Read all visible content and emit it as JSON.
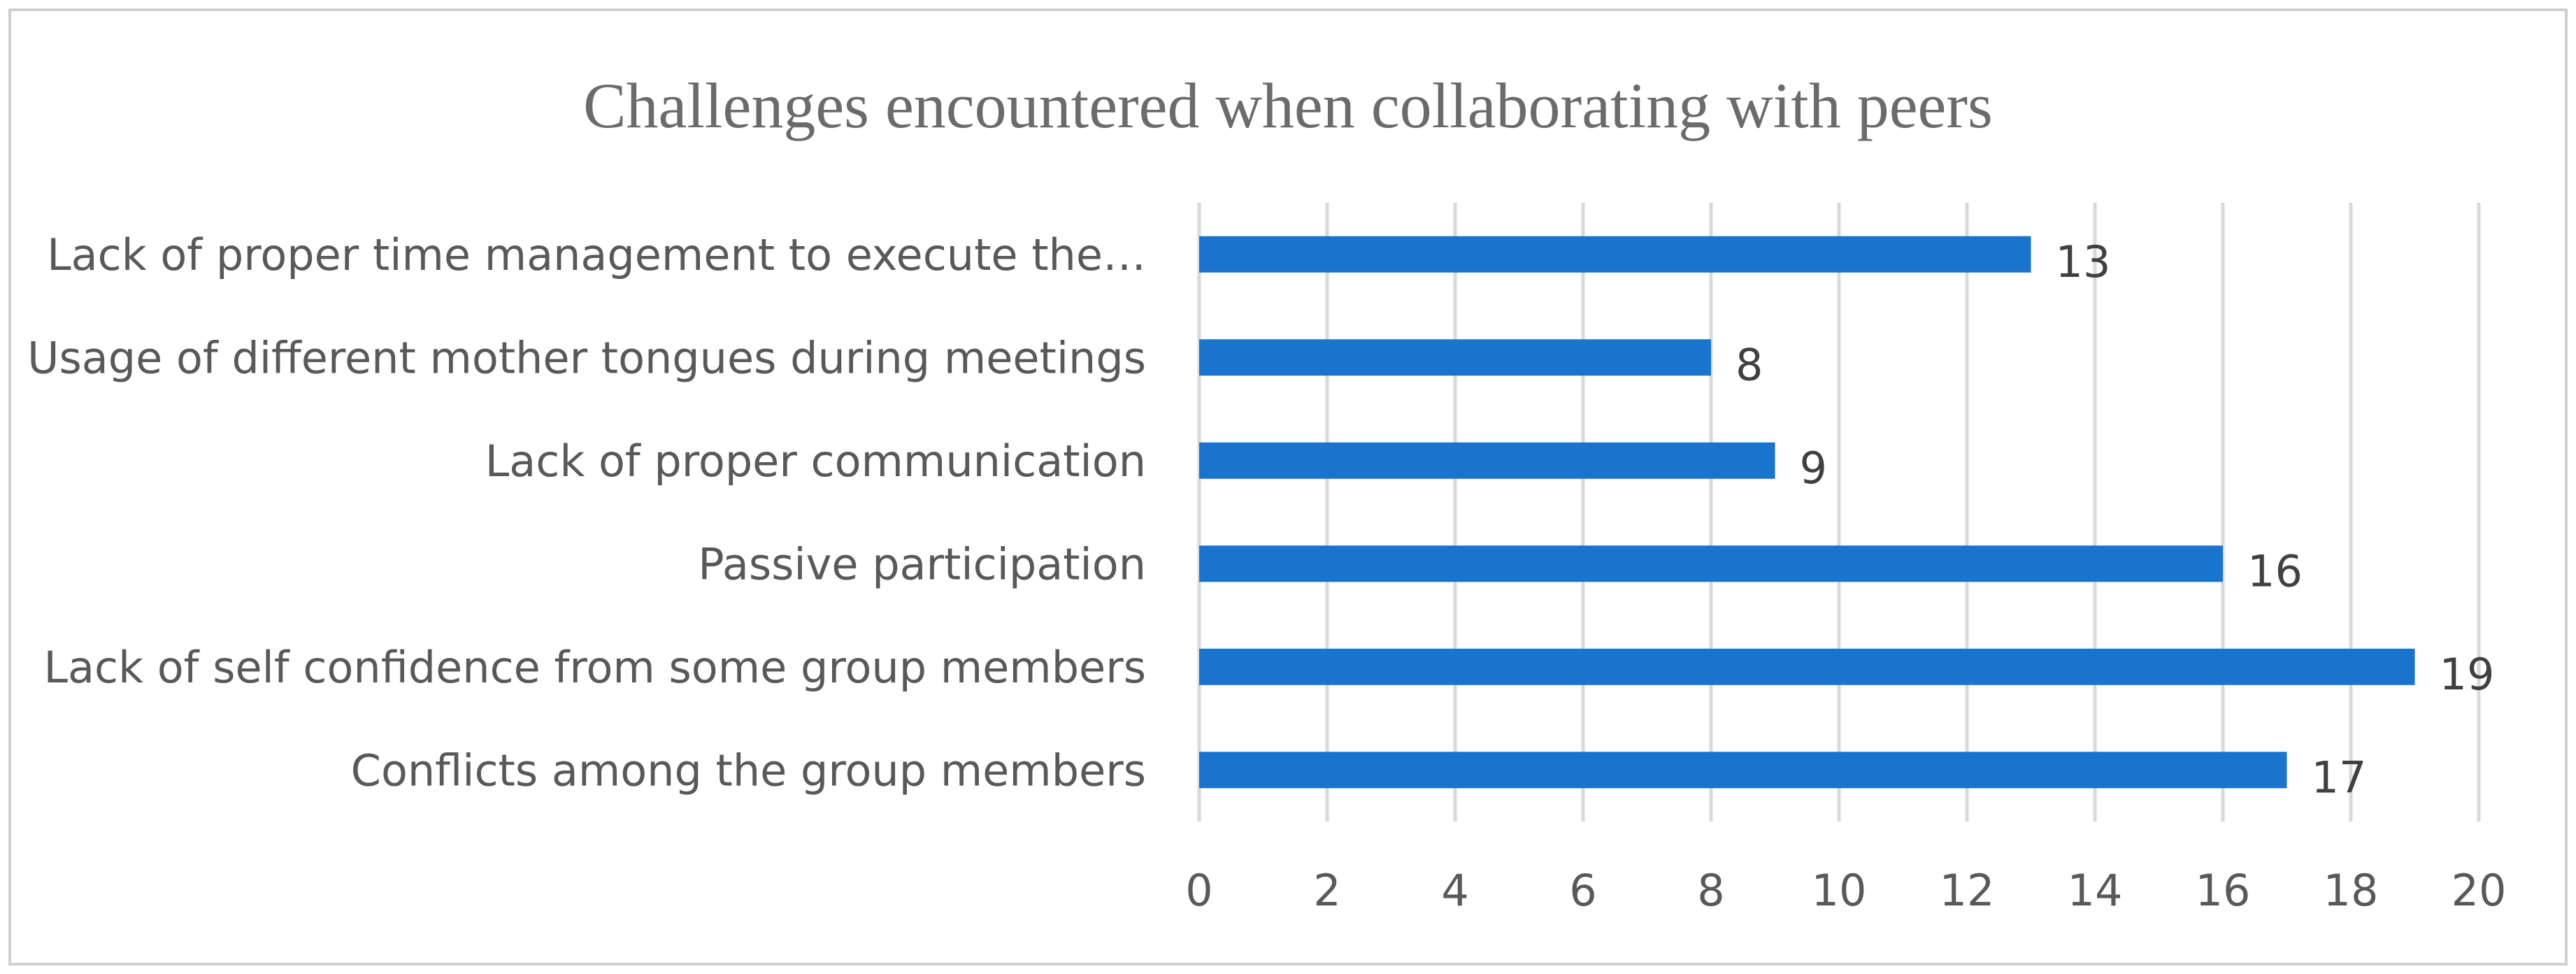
{
  "chart_data": {
    "type": "bar",
    "orientation": "horizontal",
    "title": "Challenges encountered when collaborating with peers",
    "categories": [
      "Lack of proper time management to execute the…",
      "Usage of different mother tongues during meetings",
      "Lack of proper communication",
      "Passive participation",
      "Lack of self confidence from some group members",
      "Conflicts among the group members"
    ],
    "values": [
      13,
      8,
      9,
      16,
      19,
      17
    ],
    "data_labels": [
      "13",
      "8",
      "9",
      "16",
      "19",
      "17"
    ],
    "xlim": [
      0,
      20
    ],
    "x_ticks": [
      "0",
      "2",
      "4",
      "6",
      "8",
      "10",
      "12",
      "14",
      "16",
      "18",
      "20"
    ],
    "xlabel": "",
    "ylabel": "",
    "grid": "vertical",
    "legend": "none",
    "colors": {
      "bar": "#1874CD",
      "grid": "#D9D9D9",
      "border": "#D0D0D0",
      "text": "#595959",
      "title": "#6B6B6B"
    }
  }
}
